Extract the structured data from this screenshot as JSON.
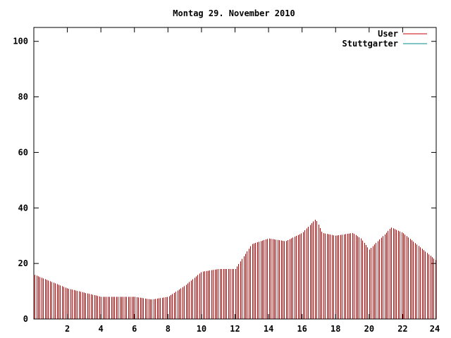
{
  "chart_data": {
    "type": "bar",
    "title": "Montag 29. November 2010",
    "xlabel": "",
    "ylabel": "",
    "xlim": [
      0,
      24
    ],
    "ylim": [
      0,
      105
    ],
    "x_ticks": [
      2,
      4,
      6,
      8,
      10,
      12,
      14,
      16,
      18,
      20,
      22,
      24
    ],
    "y_ticks": [
      0,
      20,
      40,
      60,
      80,
      100
    ],
    "grid": false,
    "legend_position": "top-right",
    "series": [
      {
        "name": "User",
        "color": "#cc0000",
        "x": [
          0,
          2,
          4,
          6,
          7,
          8,
          9,
          10,
          11,
          12,
          13,
          14,
          15,
          16,
          16.8,
          17.2,
          18,
          19,
          19.5,
          20,
          21,
          21.3,
          22,
          23,
          24
        ],
        "values": [
          16,
          11,
          8,
          8,
          7,
          8,
          12,
          17,
          18,
          18,
          27,
          29,
          28,
          31,
          36,
          31,
          30,
          31,
          29,
          25,
          31,
          33,
          31,
          26,
          21
        ]
      },
      {
        "name": "Stuttgarter",
        "color": "#008b8b",
        "x": [],
        "values": []
      }
    ]
  }
}
